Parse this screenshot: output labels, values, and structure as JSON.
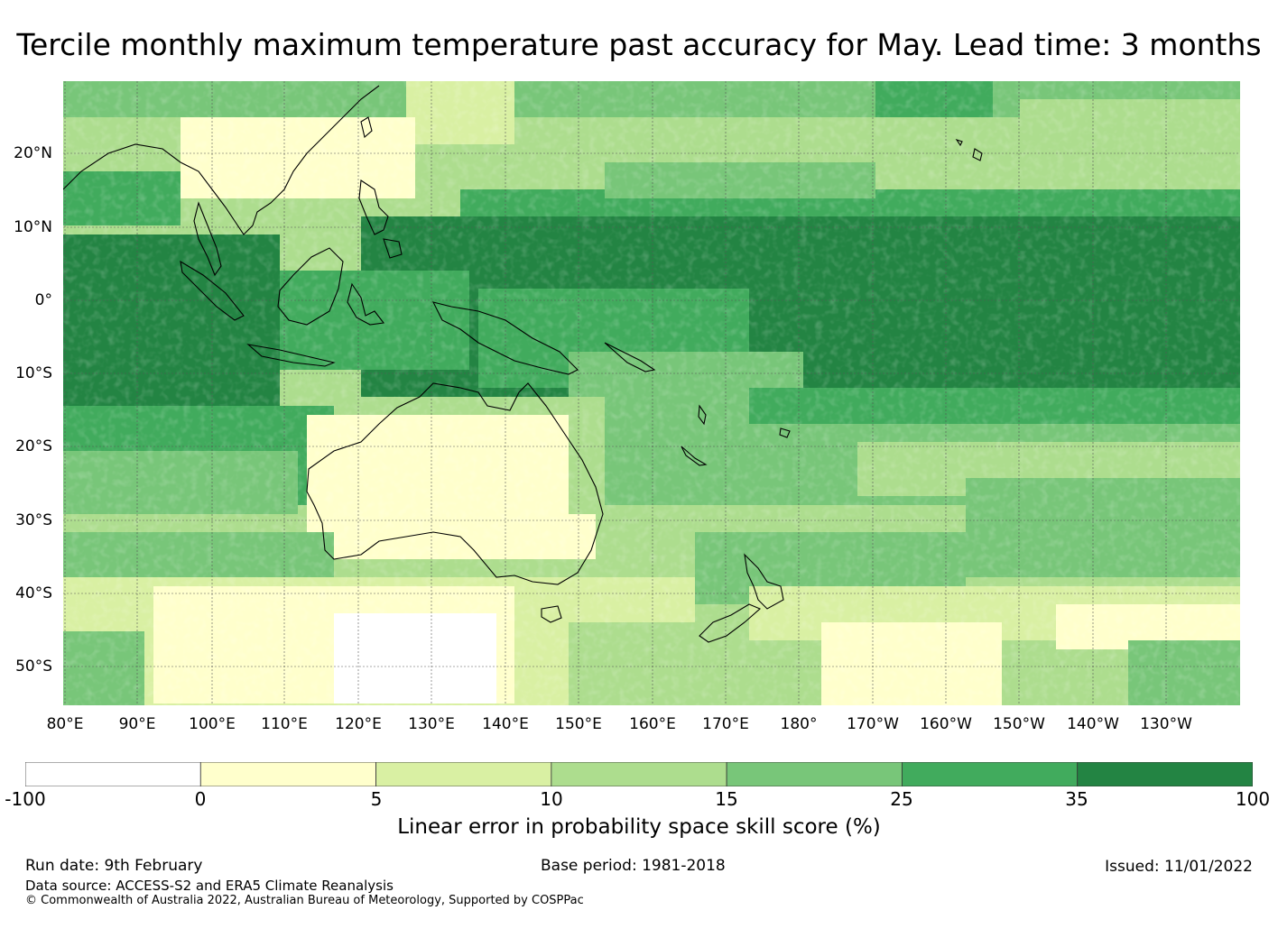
{
  "title": "Tercile monthly maximum temperature past accuracy for May. Lead time: 3 months",
  "map": {
    "region": "Pacific and Australia",
    "lat_labels": [
      "20°N",
      "10°N",
      "0°",
      "10°S",
      "20°S",
      "30°S",
      "40°S",
      "50°S"
    ],
    "lon_labels": [
      "80°E",
      "90°E",
      "100°E",
      "110°E",
      "120°E",
      "130°E",
      "140°E",
      "150°E",
      "160°E",
      "170°E",
      "180°",
      "170°W",
      "160°W",
      "150°W",
      "140°W",
      "130°W"
    ]
  },
  "colorbar": {
    "ticks": [
      "-100",
      "0",
      "5",
      "10",
      "15",
      "25",
      "35",
      "100"
    ],
    "colors": [
      "#ffffff",
      "#ffffcc",
      "#d9f0a3",
      "#addd8e",
      "#78c679",
      "#41ab5d",
      "#238443"
    ],
    "label": "Linear error in probability space skill score (%)"
  },
  "footer": {
    "run_date": "Run date: 9th February",
    "base_period": "Base period: 1981-2018",
    "issued": "Issued: 11/01/2022",
    "data_source": "Data source: ACCESS-S2 and ERA5 Climate Reanalysis",
    "copyright": "© Commonwealth of Australia 2022, Australian Bureau of Meteorology, Supported by COSPPac"
  }
}
